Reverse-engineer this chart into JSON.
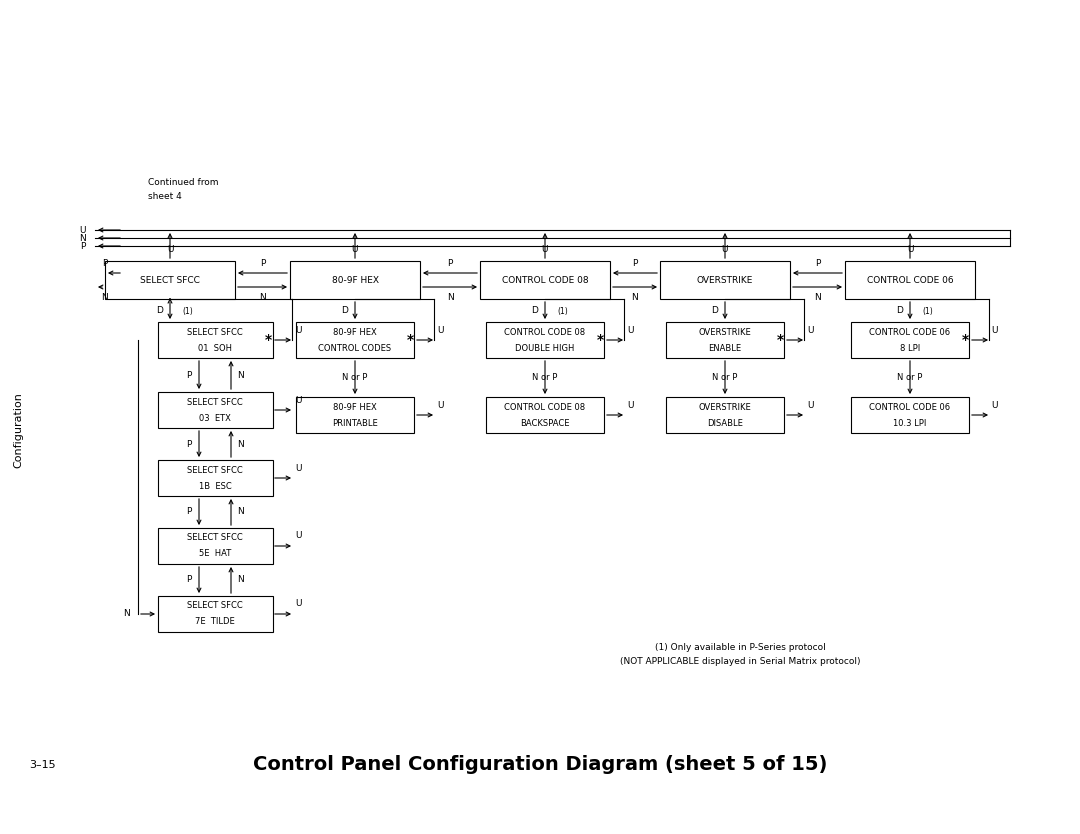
{
  "title": "Control Panel Configuration Diagram (sheet 5 of 15)",
  "sidebar_text": "Configuration",
  "page_label": "3–15",
  "continued_from": "Continued from\nsheet 4",
  "footnote_line1": "(1) Only available in P-Series protocol",
  "footnote_line2": "(NOT APPLICABLE displayed in Serial Matrix protocol)",
  "bg_color": "#ffffff",
  "main_labels": [
    "SELECT SFCC",
    "80-9F HEX",
    "CONTROL CODE 08",
    "OVERSTRIKE",
    "CONTROL CODE 06"
  ],
  "sub_labels_col0": [
    "SELECT SFCC\n01  SOH",
    "SELECT SFCC\n03  ETX",
    "SELECT SFCC\n1B  ESC",
    "SELECT SFCC\n5E  HAT",
    "SELECT SFCC\n7E  TILDE"
  ],
  "sub_star_col0": [
    true,
    false,
    false,
    false,
    false
  ],
  "sub_labels_col1": [
    "80-9F HEX\nCONTROL CODES",
    "80-9F HEX\nPRINTABLE"
  ],
  "sub_star_col1": [
    true,
    false
  ],
  "sub_labels_col2": [
    "CONTROL CODE 08\nDOUBLE HIGH",
    "CONTROL CODE 08\nBACKSPACE"
  ],
  "sub_star_col2": [
    true,
    false
  ],
  "sub_labels_col3": [
    "OVERSTRIKE\nENABLE",
    "OVERSTRIKE\nDISABLE"
  ],
  "sub_star_col3": [
    true,
    false
  ],
  "sub_labels_col4": [
    "CONTROL CODE 06\n8 LPI",
    "CONTROL CODE 06\n10.3 LPI"
  ],
  "sub_star_col4": [
    true,
    false
  ],
  "d_arrow_has1": [
    true,
    false,
    true,
    false,
    true
  ]
}
